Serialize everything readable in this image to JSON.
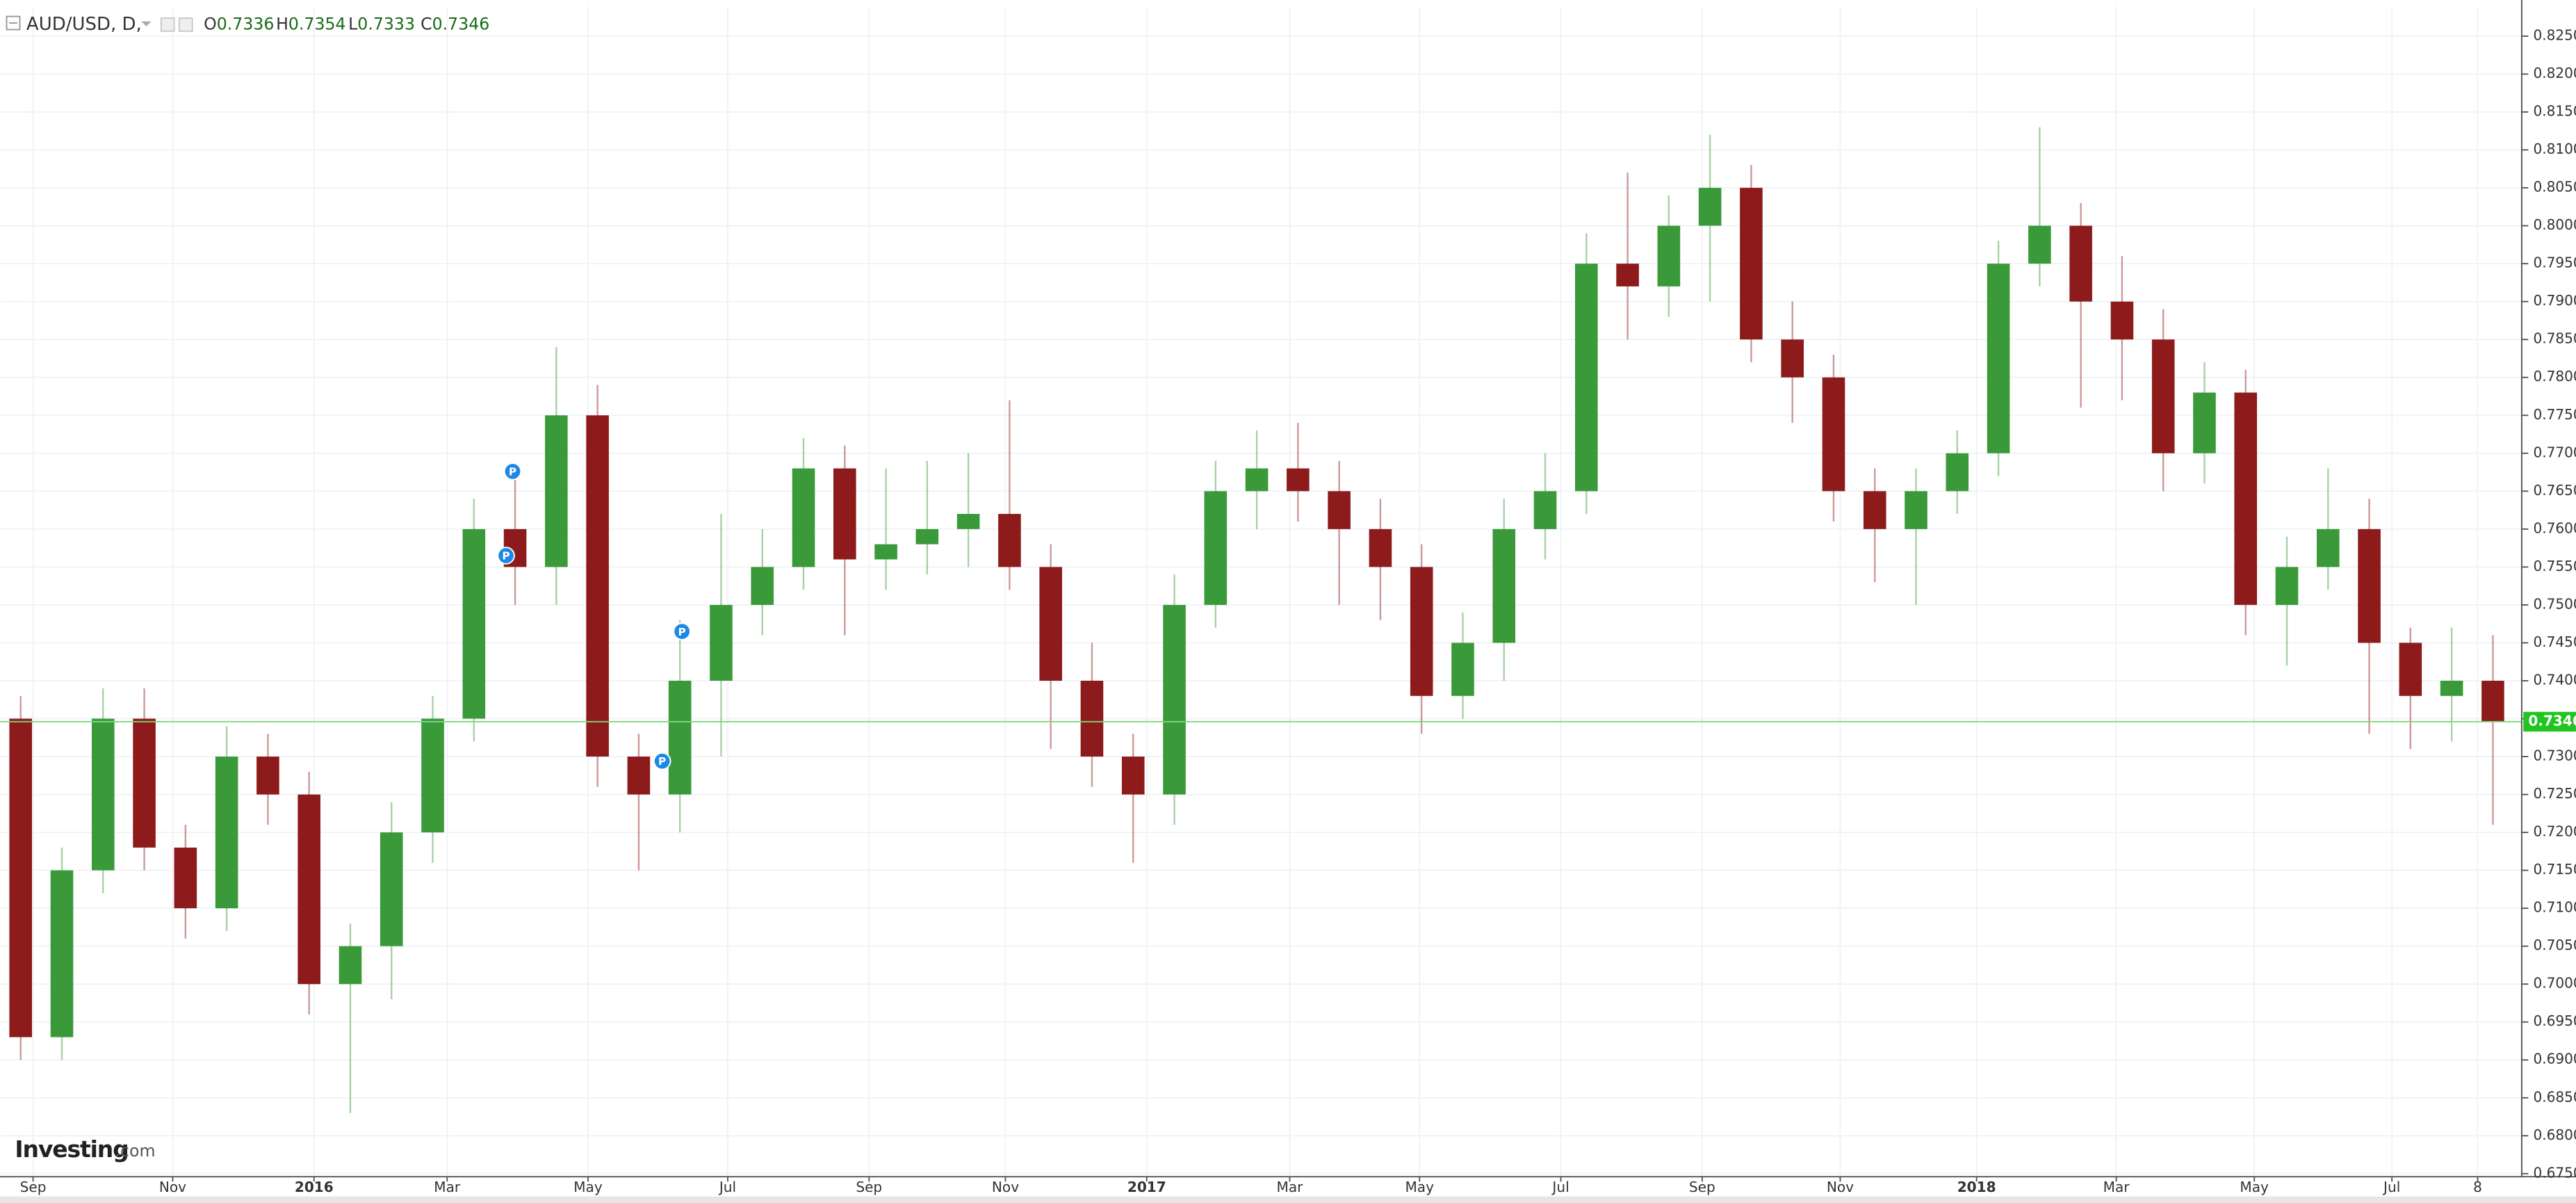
{
  "chart_data": {
    "type": "candlestick",
    "symbol": "AUD/USD, D,",
    "ohlc": [
      {
        "label": "O",
        "value": 0.7336
      },
      {
        "label": "H",
        "value": 0.7354
      },
      {
        "label": "L",
        "value": 0.7333
      },
      {
        "label": "C",
        "value": 0.7346
      }
    ],
    "last_price": 0.7346,
    "watermark": [
      "Investing",
      ".com"
    ],
    "up_color": "#3a9a3a",
    "down_color": "#8e1b1b",
    "grid": true,
    "x": [
      0,
      1,
      2,
      3,
      4,
      5,
      6,
      7,
      8,
      9,
      10,
      11,
      12,
      13,
      14,
      15,
      16,
      17,
      18,
      19,
      20,
      21,
      22,
      23,
      24,
      25,
      26,
      27,
      28,
      29,
      30,
      31,
      32,
      33,
      34,
      35,
      36,
      37,
      38,
      39,
      40,
      41,
      42,
      43,
      44,
      45,
      46,
      47,
      48,
      49,
      50,
      51,
      52,
      53,
      54,
      55,
      56,
      57,
      58,
      59,
      60
    ],
    "open": [
      0.735,
      0.693,
      0.715,
      0.735,
      0.718,
      0.71,
      0.73,
      0.725,
      0.7,
      0.705,
      0.72,
      0.735,
      0.76,
      0.755,
      0.775,
      0.73,
      0.725,
      0.74,
      0.75,
      0.755,
      0.768,
      0.756,
      0.758,
      0.76,
      0.762,
      0.755,
      0.74,
      0.73,
      0.725,
      0.75,
      0.765,
      0.768,
      0.765,
      0.76,
      0.755,
      0.738,
      0.745,
      0.76,
      0.765,
      0.795,
      0.792,
      0.8,
      0.805,
      0.785,
      0.78,
      0.765,
      0.76,
      0.765,
      0.77,
      0.795,
      0.8,
      0.79,
      0.785,
      0.77,
      0.778,
      0.75,
      0.755,
      0.76,
      0.745,
      0.738,
      0.74
    ],
    "high": [
      0.738,
      0.718,
      0.739,
      0.739,
      0.721,
      0.734,
      0.733,
      0.728,
      0.708,
      0.724,
      0.738,
      0.764,
      0.768,
      0.784,
      0.779,
      0.733,
      0.748,
      0.762,
      0.76,
      0.772,
      0.771,
      0.768,
      0.769,
      0.77,
      0.777,
      0.758,
      0.745,
      0.733,
      0.754,
      0.769,
      0.773,
      0.774,
      0.769,
      0.764,
      0.758,
      0.749,
      0.764,
      0.77,
      0.799,
      0.807,
      0.804,
      0.812,
      0.808,
      0.79,
      0.783,
      0.768,
      0.768,
      0.773,
      0.798,
      0.813,
      0.803,
      0.796,
      0.789,
      0.782,
      0.781,
      0.759,
      0.768,
      0.764,
      0.747,
      0.747,
      0.746
    ],
    "low": [
      0.69,
      0.69,
      0.712,
      0.715,
      0.706,
      0.707,
      0.721,
      0.696,
      0.683,
      0.698,
      0.716,
      0.732,
      0.75,
      0.75,
      0.726,
      0.715,
      0.72,
      0.73,
      0.746,
      0.752,
      0.746,
      0.752,
      0.754,
      0.755,
      0.752,
      0.731,
      0.726,
      0.716,
      0.721,
      0.747,
      0.76,
      0.761,
      0.75,
      0.748,
      0.733,
      0.735,
      0.74,
      0.756,
      0.762,
      0.785,
      0.788,
      0.79,
      0.782,
      0.774,
      0.761,
      0.753,
      0.75,
      0.762,
      0.767,
      0.792,
      0.776,
      0.777,
      0.765,
      0.766,
      0.746,
      0.742,
      0.752,
      0.733,
      0.731,
      0.732,
      0.721
    ],
    "close": [
      0.693,
      0.715,
      0.735,
      0.718,
      0.71,
      0.73,
      0.725,
      0.7,
      0.705,
      0.72,
      0.735,
      0.76,
      0.755,
      0.775,
      0.73,
      0.725,
      0.74,
      0.75,
      0.755,
      0.768,
      0.756,
      0.758,
      0.76,
      0.762,
      0.755,
      0.74,
      0.73,
      0.725,
      0.75,
      0.765,
      0.768,
      0.765,
      0.76,
      0.755,
      0.738,
      0.745,
      0.76,
      0.765,
      0.795,
      0.792,
      0.8,
      0.805,
      0.785,
      0.78,
      0.765,
      0.76,
      0.765,
      0.77,
      0.795,
      0.8,
      0.79,
      0.785,
      0.77,
      0.778,
      0.75,
      0.755,
      0.76,
      0.745,
      0.738,
      0.74,
      0.7346
    ],
    "xlim": [
      -0.5,
      60.7
    ],
    "xticks": [
      {
        "value": 0.3,
        "label": "Sep"
      },
      {
        "value": 3.69,
        "label": "Nov"
      },
      {
        "value": 7.12,
        "label": "2016"
      },
      {
        "value": 10.35,
        "label": "Mar"
      },
      {
        "value": 13.77,
        "label": "May"
      },
      {
        "value": 17.16,
        "label": "Jul"
      },
      {
        "value": 20.59,
        "label": "Sep"
      },
      {
        "value": 23.9,
        "label": "Nov"
      },
      {
        "value": 27.33,
        "label": "2017"
      },
      {
        "value": 30.8,
        "label": "Mar"
      },
      {
        "value": 33.95,
        "label": "May"
      },
      {
        "value": 37.38,
        "label": "Jul"
      },
      {
        "value": 40.81,
        "label": "Sep"
      },
      {
        "value": 44.16,
        "label": "Nov"
      },
      {
        "value": 47.47,
        "label": "2018"
      },
      {
        "value": 50.86,
        "label": "Mar"
      },
      {
        "value": 54.21,
        "label": "May"
      },
      {
        "value": 57.55,
        "label": "Jul"
      },
      {
        "value": 59.63,
        "label": "8"
      }
    ],
    "ylim": [
      0.6746,
      0.8289
    ],
    "yticks": [
      {
        "value": 0.675,
        "label": "0.6750"
      },
      {
        "value": 0.68,
        "label": "0.6800"
      },
      {
        "value": 0.685,
        "label": "0.6850"
      },
      {
        "value": 0.69,
        "label": "0.6900"
      },
      {
        "value": 0.695,
        "label": "0.6950"
      },
      {
        "value": 0.7,
        "label": "0.7000"
      },
      {
        "value": 0.705,
        "label": "0.7050"
      },
      {
        "value": 0.71,
        "label": "0.7100"
      },
      {
        "value": 0.715,
        "label": "0.7150"
      },
      {
        "value": 0.72,
        "label": "0.7200"
      },
      {
        "value": 0.725,
        "label": "0.7250"
      },
      {
        "value": 0.73,
        "label": "0.7300"
      },
      {
        "value": 0.735,
        "label": "0.7350"
      },
      {
        "value": 0.74,
        "label": "0.7400"
      },
      {
        "value": 0.745,
        "label": "0.7450"
      },
      {
        "value": 0.75,
        "label": "0.7500"
      },
      {
        "value": 0.755,
        "label": "0.7550"
      },
      {
        "value": 0.76,
        "label": "0.7600"
      },
      {
        "value": 0.765,
        "label": "0.7650"
      },
      {
        "value": 0.77,
        "label": "0.7700"
      },
      {
        "value": 0.775,
        "label": "0.7750"
      },
      {
        "value": 0.78,
        "label": "0.7800"
      },
      {
        "value": 0.785,
        "label": "0.7850"
      },
      {
        "value": 0.79,
        "label": "0.7900"
      },
      {
        "value": 0.795,
        "label": "0.7950"
      },
      {
        "value": 0.8,
        "label": "0.8000"
      },
      {
        "value": 0.805,
        "label": "0.8050"
      },
      {
        "value": 0.81,
        "label": "0.8100"
      },
      {
        "value": 0.815,
        "label": "0.8150"
      },
      {
        "value": 0.82,
        "label": "0.8200"
      },
      {
        "value": 0.825,
        "label": "0.8250"
      }
    ],
    "events": [
      {
        "x": 11.94,
        "y": 0.7676,
        "label": "P"
      },
      {
        "x": 11.78,
        "y": 0.7565,
        "label": "P"
      },
      {
        "x": 15.57,
        "y": 0.7294,
        "label": "P"
      },
      {
        "x": 16.05,
        "y": 0.7465,
        "label": "P"
      }
    ]
  }
}
